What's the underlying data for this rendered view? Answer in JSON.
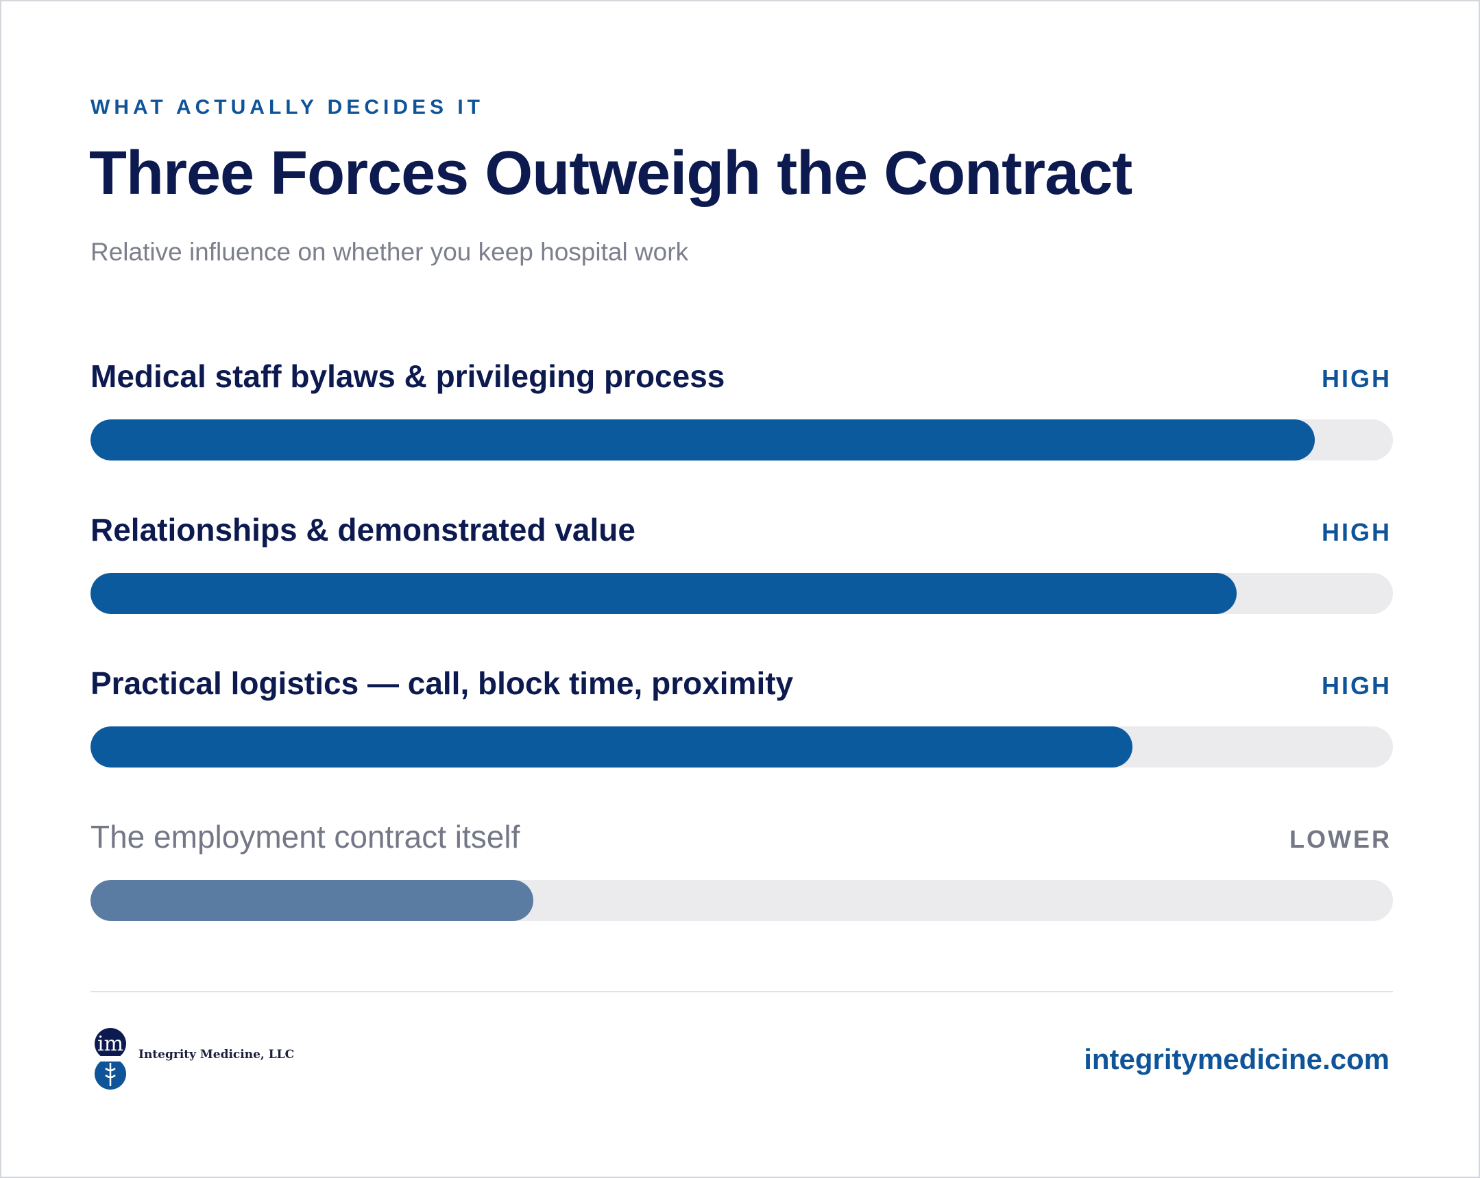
{
  "header": {
    "eyebrow": "WHAT ACTUALLY DECIDES IT",
    "title": "Three Forces Outweigh the Contract",
    "subtitle": "Relative influence on whether you keep hospital work"
  },
  "colors": {
    "primary_fill": "#0c5a9e",
    "muted_fill": "#5b7ca2",
    "track": "#ebebee",
    "heading": "#0d1a4f",
    "accent": "#0f5499",
    "muted_text": "#747786"
  },
  "chart_data": {
    "type": "bar",
    "orientation": "horizontal",
    "categories": [
      "Medical staff bylaws & privileging process",
      "Relationships & demonstrated value",
      "Practical logistics — call, block time, proximity",
      "The employment contract itself"
    ],
    "values": [
      94,
      88,
      80,
      34
    ],
    "levels": [
      "HIGH",
      "HIGH",
      "HIGH",
      "LOWER"
    ],
    "xlim": [
      0,
      100
    ],
    "grid": false
  },
  "footer": {
    "logo_text": "im",
    "company": "Integrity Medicine, LLC",
    "website": "integritymedicine.com"
  }
}
